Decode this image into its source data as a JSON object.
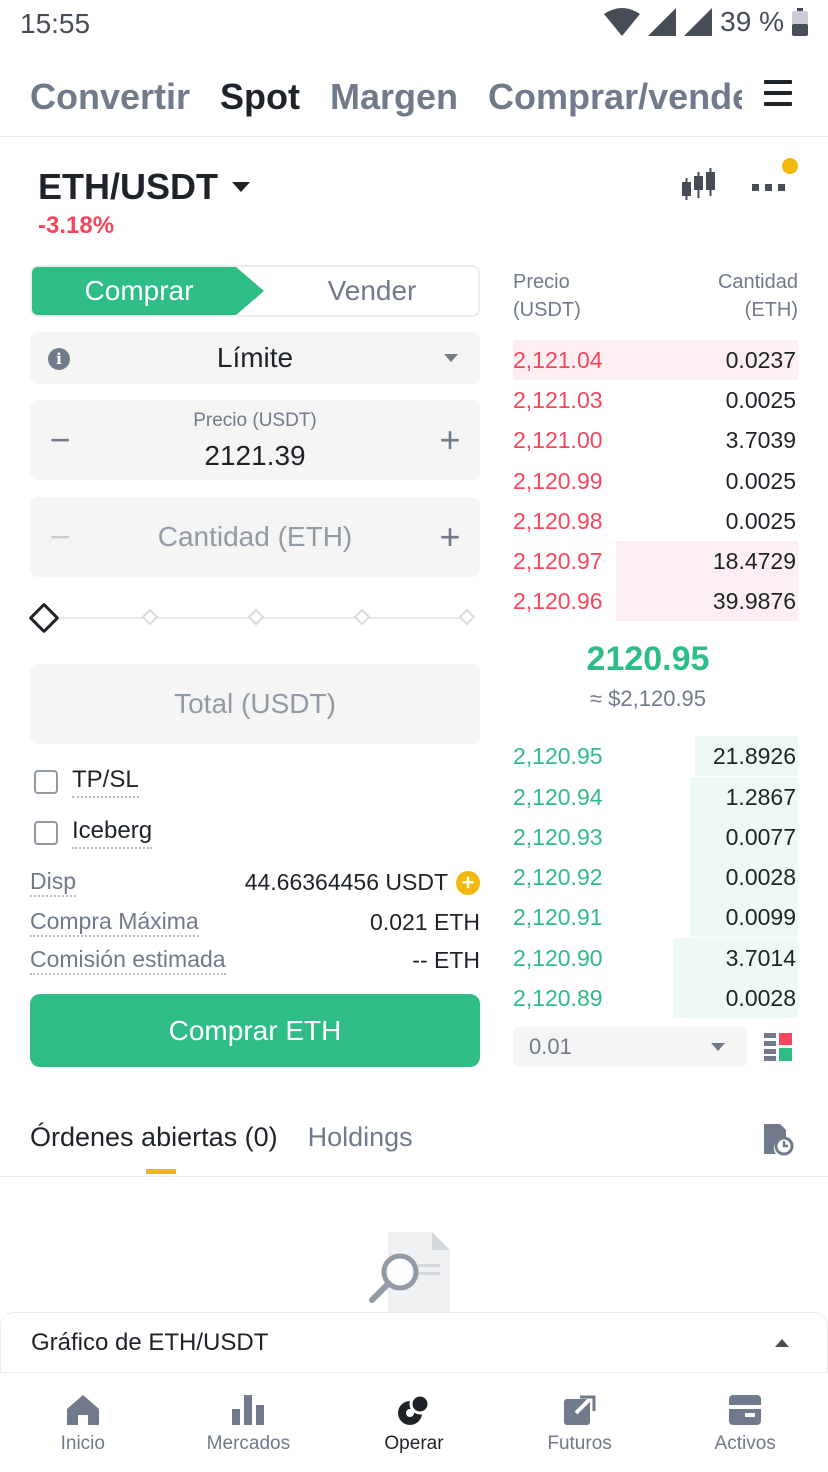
{
  "status": {
    "time": "15:55",
    "battery": "39 %"
  },
  "top_tabs": [
    {
      "label": "Convertir",
      "active": false
    },
    {
      "label": "Spot",
      "active": true
    },
    {
      "label": "Margen",
      "active": false
    },
    {
      "label": "Comprar/vender",
      "active": false
    }
  ],
  "pair": {
    "symbol": "ETH/USDT",
    "change": "-3.18%"
  },
  "trade": {
    "buy_label": "Comprar",
    "sell_label": "Vender",
    "order_type": "Límite",
    "price_label": "Precio (USDT)",
    "price_value": "2121.39",
    "qty_placeholder": "Cantidad (ETH)",
    "total_placeholder": "Total (USDT)",
    "tpsl_label": "TP/SL",
    "iceberg_label": "Iceberg",
    "disp_label": "Disp",
    "disp_value": "44.66364456 USDT",
    "max_buy_label": "Compra Máxima",
    "max_buy_value": "0.021 ETH",
    "fee_label": "Comisión estimada",
    "fee_value": "-- ETH",
    "submit_label": "Comprar ETH"
  },
  "orderbook": {
    "price_header": "Precio",
    "price_unit": "(USDT)",
    "qty_header": "Cantidad",
    "qty_unit": "(ETH)",
    "asks": [
      {
        "price": "2,121.04",
        "qty": "0.0237",
        "depth": 1.0
      },
      {
        "price": "2,121.03",
        "qty": "0.0025",
        "depth": 0.0
      },
      {
        "price": "2,121.00",
        "qty": "3.7039",
        "depth": 0.0
      },
      {
        "price": "2,120.99",
        "qty": "0.0025",
        "depth": 0.0
      },
      {
        "price": "2,120.98",
        "qty": "0.0025",
        "depth": 0.0
      },
      {
        "price": "2,120.97",
        "qty": "18.4729",
        "depth": 0.64
      },
      {
        "price": "2,120.96",
        "qty": "39.9876",
        "depth": 0.64
      }
    ],
    "mid_price": "2120.95",
    "mid_fiat": "≈ $2,120.95",
    "bids": [
      {
        "price": "2,120.95",
        "qty": "21.8926",
        "depth": 0.36
      },
      {
        "price": "2,120.94",
        "qty": "1.2867",
        "depth": 0.38
      },
      {
        "price": "2,120.93",
        "qty": "0.0077",
        "depth": 0.38
      },
      {
        "price": "2,120.92",
        "qty": "0.0028",
        "depth": 0.38
      },
      {
        "price": "2,120.91",
        "qty": "0.0099",
        "depth": 0.38
      },
      {
        "price": "2,120.90",
        "qty": "3.7014",
        "depth": 0.44
      },
      {
        "price": "2,120.89",
        "qty": "0.0028",
        "depth": 0.44
      }
    ],
    "depth_value": "0.01"
  },
  "orders": {
    "open_label": "Órdenes abiertas (0)",
    "holdings_label": "Holdings"
  },
  "chart_bar_label": "Gráfico de ETH/USDT",
  "nav": [
    {
      "label": "Inicio",
      "icon": "home-icon",
      "active": false
    },
    {
      "label": "Mercados",
      "icon": "markets-icon",
      "active": false
    },
    {
      "label": "Operar",
      "icon": "trade-icon",
      "active": true
    },
    {
      "label": "Futuros",
      "icon": "futures-icon",
      "active": false
    },
    {
      "label": "Activos",
      "icon": "wallet-icon",
      "active": false
    }
  ],
  "colors": {
    "buy": "#2ebd85",
    "sell": "#f6465d",
    "accent": "#f0b90b"
  }
}
